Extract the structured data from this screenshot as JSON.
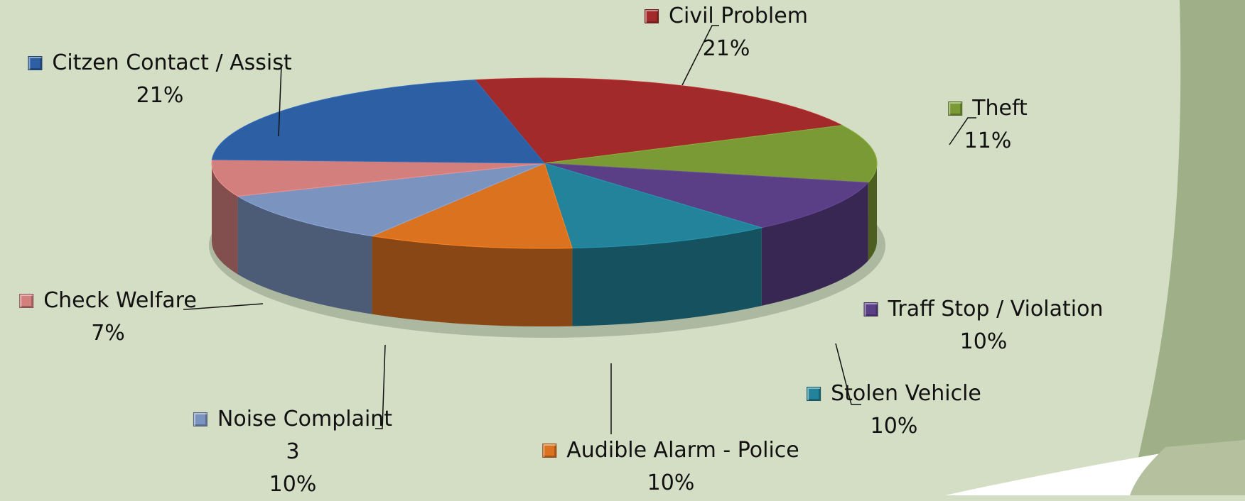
{
  "chart_data": {
    "type": "pie",
    "title": "",
    "slices": [
      {
        "label": "Civil Problem",
        "value_text": "21%",
        "value": 21,
        "color": "#a32a2a"
      },
      {
        "label": "Theft",
        "value_text": "11%",
        "value": 11,
        "color": "#7a9a36"
      },
      {
        "label": "Traff Stop / Violation",
        "value_text": "10%",
        "value": 10,
        "color": "#5b3f86"
      },
      {
        "label": "Stolen Vehicle",
        "value_text": "10%",
        "value": 10,
        "color": "#22839a"
      },
      {
        "label": "Audible Alarm - Police",
        "value_text": "10%",
        "value": 10,
        "color": "#db7220"
      },
      {
        "label": "Noise Complaint",
        "count_text": "3",
        "value_text": "10%",
        "value": 10,
        "color": "#7b93bf"
      },
      {
        "label": "Check Welfare",
        "value_text": "7%",
        "value": 7,
        "color": "#d27f7d"
      },
      {
        "label": "Citzen Contact / Assist",
        "value_text": "21%",
        "value": 21,
        "color": "#2c5fa3"
      }
    ],
    "legend": "none",
    "data_labels": "outside with leader lines"
  }
}
